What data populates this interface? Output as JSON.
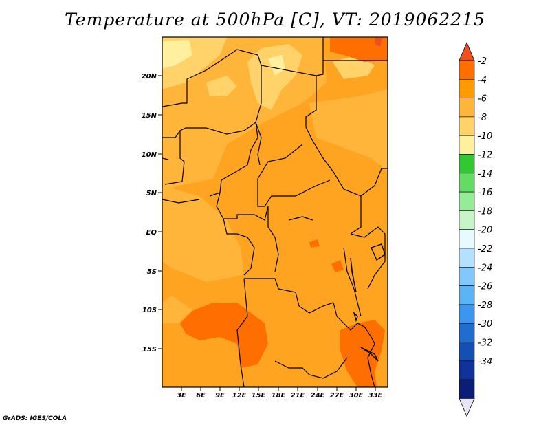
{
  "title": "Temperature at 500hPa [C], VT: 2019062215",
  "credit": "GrADS: IGES/COLA",
  "map": {
    "lat_labels": [
      "20N",
      "15N",
      "10N",
      "5N",
      "EQ",
      "5S",
      "10S",
      "15S"
    ],
    "lon_labels": [
      "3E",
      "6E",
      "9E",
      "12E",
      "15E",
      "18E",
      "21E",
      "24E",
      "27E",
      "30E",
      "33E"
    ]
  },
  "colorbar": {
    "labels": [
      "-2",
      "-4",
      "-6",
      "-8",
      "-10",
      "-12",
      "-14",
      "-16",
      "-18",
      "-20",
      "-22",
      "-24",
      "-26",
      "-28",
      "-30",
      "-32",
      "-34"
    ],
    "colors": [
      "#f0501e",
      "#ff6e00",
      "#ff9a00",
      "#ffb43a",
      "#ffd26a",
      "#fff0a0",
      "#32c832",
      "#64dc64",
      "#96eb96",
      "#c8f5c8",
      "#e6faff",
      "#b4e1ff",
      "#82c8ff",
      "#5ab4f5",
      "#3c96f0",
      "#1e6ed2",
      "#1450b4",
      "#0f329b",
      "#0a1e78",
      "#e6e6f5"
    ]
  },
  "colors": {
    "deep_orange": "#ff6e00",
    "orange": "#ff9a00",
    "light_orange": "#ffb43a",
    "pale_yellow": "#ffd26a",
    "cream": "#fff0a0"
  }
}
